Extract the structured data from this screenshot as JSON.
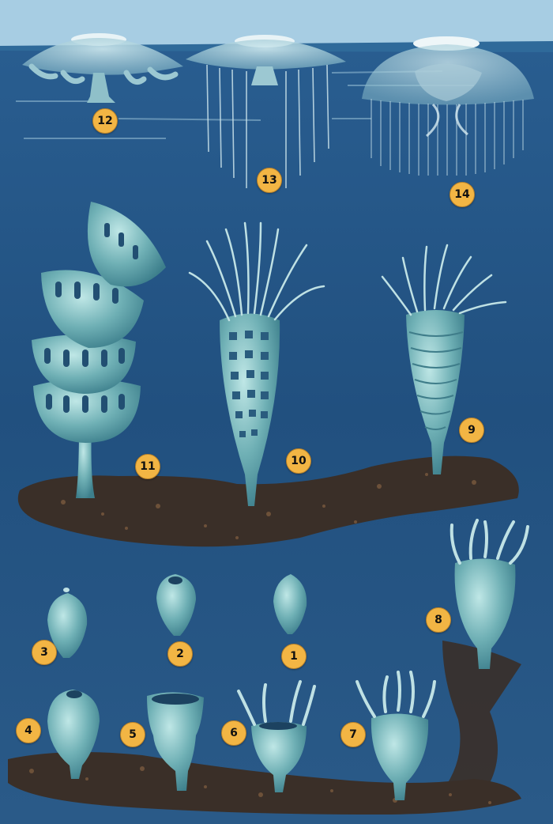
{
  "labels": {
    "stage_1": "1",
    "stage_2": "2",
    "stage_3": "3",
    "stage_4": "4",
    "stage_5": "5",
    "stage_6": "6",
    "stage_7": "7",
    "stage_8": "8",
    "stage_9": "9",
    "stage_10": "10",
    "stage_11": "11",
    "stage_12": "12",
    "stage_13": "13",
    "stage_14": "14"
  },
  "colors": {
    "sky": "#a7cde3",
    "sea": "#1f4d7c",
    "creature": "#6fb0b5",
    "seabed": "#3a2f28",
    "badge": "#f2b544"
  }
}
